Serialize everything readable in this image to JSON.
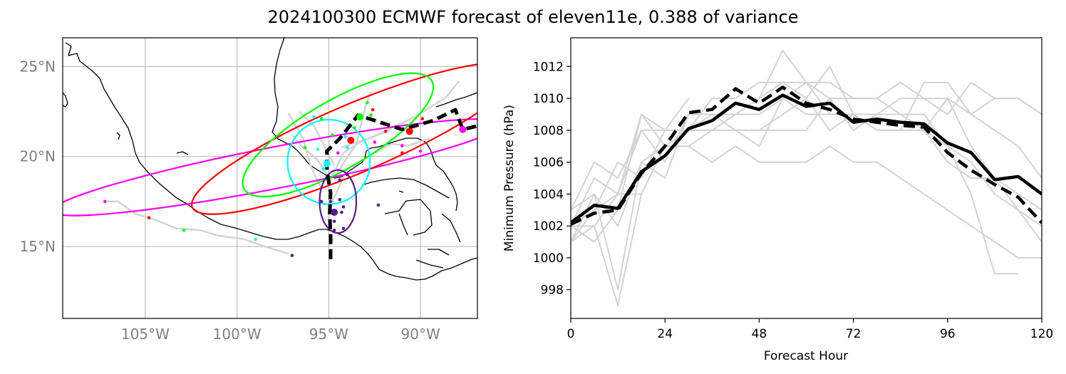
{
  "title": "2024100300 ECMWF forecast of eleven11e, 0.388 of variance",
  "chart_data": [
    {
      "type": "map",
      "panel": "track-map",
      "lon_range": [
        -109.5,
        -86.9
      ],
      "lat_range": [
        11.0,
        26.6
      ],
      "x_ticks": [
        {
          "lon": -105,
          "label": "105°W"
        },
        {
          "lon": -100,
          "label": "100°W"
        },
        {
          "lon": -95,
          "label": "95°W"
        },
        {
          "lon": -90,
          "label": "90°W"
        }
      ],
      "y_ticks": [
        {
          "lat": 15,
          "label": "15°N"
        },
        {
          "lat": 20,
          "label": "20°N"
        },
        {
          "lat": 25,
          "label": "25°N"
        }
      ],
      "grid": true,
      "colors": {
        "tick": "#808080",
        "grid": "#b0b0b0",
        "coast": "#000000",
        "ensemble": "#d3d3d3",
        "ensemble_mean": "#000000"
      },
      "ensemble_mean_track": [
        [
          -94.9,
          14.3
        ],
        [
          -94.9,
          15.6
        ],
        [
          -94.95,
          16.8
        ],
        [
          -94.9,
          18.0
        ],
        [
          -95.1,
          19.2
        ],
        [
          -95.1,
          20.3
        ],
        [
          -94.4,
          21.0
        ],
        [
          -93.4,
          22.3
        ],
        [
          -92.2,
          21.9
        ],
        [
          -91.0,
          21.5
        ],
        [
          -89.3,
          22.0
        ],
        [
          -88.1,
          22.6
        ],
        [
          -87.7,
          21.5
        ],
        [
          -86.9,
          21.7
        ]
      ],
      "ensemble_tracks": [
        [
          [
            -107.2,
            17.5
          ],
          [
            -106.5,
            17.5
          ],
          [
            -105.5,
            16.8
          ],
          [
            -104.5,
            16.5
          ],
          [
            -103.3,
            16.0
          ],
          [
            -102.0,
            15.9
          ],
          [
            -101.0,
            15.6
          ],
          [
            -99.6,
            15.4
          ],
          [
            -98.5,
            15.0
          ],
          [
            -97.2,
            14.6
          ]
        ],
        [
          [
            -95.1,
            19.0
          ],
          [
            -95.6,
            19.8
          ],
          [
            -96.5,
            20.6
          ],
          [
            -97.0,
            21.2
          ]
        ],
        [
          [
            -94.7,
            19.5
          ],
          [
            -95.8,
            21.7
          ],
          [
            -96.6,
            22.5
          ]
        ],
        [
          [
            -94.6,
            19.0
          ],
          [
            -93.5,
            20.7
          ],
          [
            -93.0,
            22.8
          ],
          [
            -92.7,
            23.6
          ]
        ],
        [
          [
            -94.8,
            17.5
          ],
          [
            -94.0,
            19.3
          ],
          [
            -92.5,
            20.2
          ],
          [
            -91.6,
            20.7
          ],
          [
            -90.7,
            20.6
          ],
          [
            -89.5,
            21.0
          ]
        ],
        [
          [
            -95.0,
            16.0
          ],
          [
            -95.0,
            18.5
          ],
          [
            -94.2,
            20.2
          ],
          [
            -93.3,
            20.8
          ],
          [
            -91.6,
            21.5
          ]
        ],
        [
          [
            -94.3,
            20.5
          ],
          [
            -92.6,
            21.1
          ],
          [
            -90.3,
            22.2
          ],
          [
            -88.6,
            23.3
          ],
          [
            -87.9,
            24.2
          ]
        ],
        [
          [
            -95.4,
            18.2
          ],
          [
            -96.0,
            19.5
          ],
          [
            -96.4,
            21.0
          ],
          [
            -97.2,
            22.4
          ]
        ]
      ],
      "ensemble_points": [
        {
          "color": "#ff00ff",
          "points": [
            [
              -107.2,
              17.5
            ],
            [
              -94.5,
              20.2
            ],
            [
              -91.0,
              20.6
            ],
            [
              -90.0,
              20.3
            ],
            [
              -92.5,
              20.8
            ]
          ]
        },
        {
          "color": "#ff0000",
          "points": [
            [
              -104.8,
              16.6
            ],
            [
              -92.6,
              22.6
            ],
            [
              -91.9,
              21.4
            ],
            [
              -90.6,
              21.4
            ],
            [
              -89.9,
              22.1
            ],
            [
              -91.0,
              20.2
            ]
          ]
        },
        {
          "color": "#00ff00",
          "points": [
            [
              -102.9,
              15.9
            ],
            [
              -95.4,
              22.1
            ],
            [
              -94.8,
              21.2
            ],
            [
              -93.6,
              21.6
            ],
            [
              -92.7,
              22.3
            ],
            [
              -92.9,
              23.0
            ],
            [
              -96.3,
              20.5
            ]
          ]
        },
        {
          "color": "#00ffff",
          "points": [
            [
              -99.0,
              15.4
            ],
            [
              -95.6,
              20.4
            ],
            [
              -94.1,
              21.1
            ],
            [
              -94.0,
              20.5
            ],
            [
              -95.3,
              19.3
            ],
            [
              -95.8,
              22.2
            ]
          ]
        },
        {
          "color": "#5a1a8a",
          "points": [
            [
              -97.0,
              14.5
            ],
            [
              -92.3,
              17.3
            ],
            [
              -94.4,
              17.6
            ],
            [
              -94.2,
              17.2
            ],
            [
              -94.7,
              16.4
            ],
            [
              -94.2,
              16.0
            ],
            [
              -94.4,
              18.7
            ],
            [
              -94.0,
              19.0
            ],
            [
              -94.9,
              17.5
            ],
            [
              -94.7,
              15.9
            ],
            [
              -95.4,
              17.5
            ],
            [
              -94.3,
              16.9
            ]
          ]
        }
      ],
      "ellipses": [
        {
          "color": "#ff00ff",
          "center": [
            -97.8,
            19.4
          ],
          "semi_axes_deg": [
            12.5,
            1.15
          ],
          "angle_deg": 11
        },
        {
          "color": "#ff0000",
          "center": [
            -93.6,
            21.0
          ],
          "semi_axes_deg": [
            9.6,
            1.9
          ],
          "angle_deg": 23
        },
        {
          "color": "#00ff00",
          "center": [
            -94.5,
            21.2
          ],
          "semi_axes_deg": [
            5.9,
            1.9
          ],
          "angle_deg": 30
        },
        {
          "color": "#00ffff",
          "center": [
            -95.0,
            19.7
          ],
          "semi_axes_deg": [
            2.25,
            2.35
          ],
          "angle_deg": 0
        },
        {
          "color": "#5a1a8a",
          "center": [
            -94.5,
            17.5
          ],
          "semi_axes_deg": [
            1.0,
            1.75
          ],
          "angle_deg": 0
        }
      ],
      "mean_points": [
        {
          "color": "#ff00ff",
          "lon": -87.7,
          "lat": 21.5
        },
        {
          "color": "#ff0000",
          "lon": -90.6,
          "lat": 21.4
        },
        {
          "color": "#ff0000",
          "lon": -93.8,
          "lat": 20.9
        },
        {
          "color": "#00ff00",
          "lon": -93.3,
          "lat": 22.2
        },
        {
          "color": "#00ffff",
          "lon": -95.1,
          "lat": 19.6
        },
        {
          "color": "#5a1a8a",
          "lon": -94.7,
          "lat": 16.9
        }
      ]
    },
    {
      "type": "line",
      "panel": "pressure",
      "xlabel": "Forecast Hour",
      "ylabel": "Minimum Pressure (hPa)",
      "xlim": [
        0,
        120
      ],
      "ylim": [
        996.2,
        1013.8
      ],
      "x_ticks": [
        0,
        24,
        48,
        72,
        96,
        120
      ],
      "y_ticks": [
        998,
        1000,
        1002,
        1004,
        1006,
        1008,
        1010,
        1012
      ],
      "grid": false,
      "colors": {
        "members": "#d3d3d3",
        "mean": "#000000",
        "dashed": "#000000"
      },
      "members": [
        {
          "x": [
            0,
            6,
            12,
            18,
            24,
            30,
            36,
            42,
            48,
            54,
            60,
            66,
            72,
            78,
            84,
            90,
            96,
            102,
            108,
            114,
            120
          ],
          "y": [
            1003,
            1004,
            1002,
            1006,
            1007,
            1008,
            1008,
            1009,
            1010,
            1013,
            1011,
            1009,
            1009,
            1008,
            1008,
            1008,
            1006,
            1005,
            1005,
            1004,
            1003
          ]
        },
        {
          "x": [
            0,
            6,
            12,
            18,
            24,
            30,
            36,
            42,
            48,
            54,
            60,
            66,
            72,
            78,
            84,
            90,
            96,
            102,
            108,
            114,
            120
          ],
          "y": [
            1001,
            1002,
            997,
            1004,
            1007,
            1008,
            1010,
            1010,
            1011,
            1011,
            1010,
            1012,
            1009,
            1008,
            1008,
            1011,
            1011,
            1009,
            1008,
            1007,
            1005
          ]
        },
        {
          "x": [
            0,
            6,
            12,
            18,
            24,
            30,
            36,
            42,
            48,
            54,
            60,
            66,
            72,
            78,
            84,
            90,
            96,
            102,
            108,
            114,
            120
          ],
          "y": [
            1002,
            1003,
            1004,
            1009,
            1007,
            1007,
            1008,
            1009,
            1009,
            1010,
            1011,
            1011,
            1010,
            1010,
            1009,
            1009,
            1007,
            1006,
            1004,
            1003,
            1002
          ]
        },
        {
          "x": [
            0,
            6,
            12,
            18,
            24,
            30,
            36,
            42,
            48,
            54,
            60,
            66,
            72,
            78,
            84,
            90,
            96,
            102,
            108,
            114,
            120
          ],
          "y": [
            1002,
            1005,
            1004,
            1008,
            1006,
            1009,
            1009,
            1008,
            1007,
            1010,
            1009,
            1009,
            1009,
            1009,
            1010,
            1010,
            1009,
            1011,
            1010,
            1010,
            1009
          ]
        },
        {
          "x": [
            0,
            6,
            12,
            18,
            24,
            30,
            36,
            42,
            48,
            54,
            60,
            66,
            72,
            78,
            84,
            90,
            96,
            102,
            108,
            114,
            120
          ],
          "y": [
            1001,
            1003,
            1006,
            1005,
            1008,
            1008,
            1008,
            1008,
            1008,
            1008,
            1008,
            1010,
            1008,
            1009,
            1009,
            1008,
            1010,
            1007,
            1005,
            1003,
            1001
          ]
        },
        {
          "x": [
            0,
            6,
            12,
            18,
            24,
            30,
            36,
            42,
            48,
            54,
            60,
            66,
            72,
            78,
            84,
            90,
            96,
            102,
            108,
            114
          ],
          "y": [
            1001,
            1004,
            998,
            1006,
            1005,
            1009,
            1009,
            1008,
            1008,
            1009,
            1010,
            1008,
            1009,
            1008,
            1008,
            1008,
            1007,
            1004,
            999,
            999
          ]
        },
        {
          "x": [
            0,
            6,
            12,
            18,
            24,
            30,
            36,
            42,
            48,
            54,
            60,
            66,
            72,
            78,
            84,
            90,
            96,
            102,
            108,
            114,
            120
          ],
          "y": [
            1002,
            1002,
            1004,
            1004,
            1007,
            1007,
            1006,
            1007,
            1006,
            1006,
            1006,
            1007,
            1006,
            1006,
            1005,
            1004,
            1003,
            1002,
            1001,
            1000,
            1000
          ]
        },
        {
          "x": [
            0,
            6,
            12,
            18,
            24,
            30
          ],
          "y": [
            1003,
            1006,
            1005,
            1008,
            1008,
            1010
          ]
        },
        {
          "x": [
            0,
            6,
            12,
            18,
            24,
            30,
            36,
            42,
            48,
            54,
            60,
            66,
            72,
            78,
            84,
            90,
            96,
            102,
            108,
            114,
            120
          ],
          "y": [
            1002,
            1001,
            1003,
            1009,
            1008,
            1008,
            1009,
            1009,
            1010,
            1011,
            1011,
            1010,
            1010,
            1010,
            1011,
            1010,
            1010,
            1009,
            1010,
            1010,
            1009
          ]
        }
      ],
      "ensemble_mean": {
        "x": [
          0,
          6,
          12,
          18,
          24,
          30,
          36,
          42,
          48,
          54,
          60,
          66,
          72,
          78,
          84,
          90,
          96,
          102,
          108,
          114,
          120
        ],
        "y": [
          1002.2,
          1003.3,
          1003.1,
          1005.4,
          1006.4,
          1008.1,
          1008.6,
          1009.7,
          1009.3,
          1010.2,
          1009.5,
          1009.7,
          1008.5,
          1008.7,
          1008.5,
          1008.4,
          1007.2,
          1006.6,
          1004.9,
          1005.1,
          1004.0
        ]
      },
      "dashed_line": {
        "x": [
          0,
          6,
          12,
          18,
          24,
          30,
          36,
          42,
          48,
          54,
          60,
          66,
          72,
          78,
          84,
          90,
          96,
          102,
          108,
          114,
          120
        ],
        "y": [
          1002.1,
          1002.8,
          1003.0,
          1005.3,
          1007.0,
          1009.1,
          1009.3,
          1010.6,
          1009.7,
          1010.7,
          1009.7,
          1009.3,
          1008.7,
          1008.5,
          1008.3,
          1008.2,
          1006.6,
          1005.5,
          1004.6,
          1003.8,
          1002.2
        ]
      }
    }
  ]
}
